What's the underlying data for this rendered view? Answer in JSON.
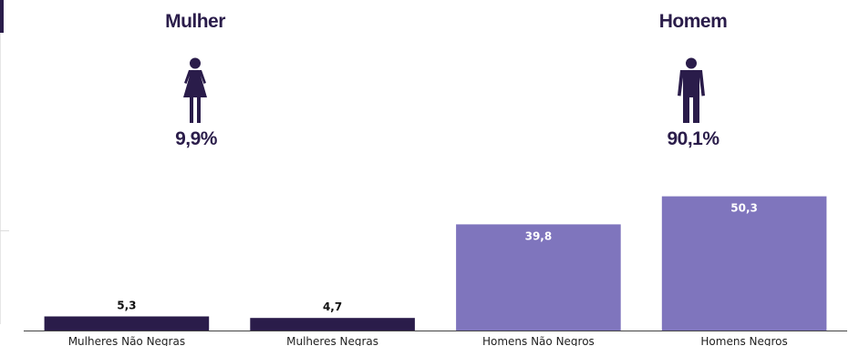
{
  "summary": {
    "female": {
      "title": "Mulher",
      "percent": "9,9%",
      "icon": "female-person-icon"
    },
    "male": {
      "title": "Homem",
      "percent": "90,1%",
      "icon": "male-person-icon"
    }
  },
  "colors": {
    "dark": "#2a1c4a",
    "light": "#7f75bd"
  },
  "chart_data": {
    "type": "bar",
    "title": "",
    "xlabel": "",
    "ylabel": "",
    "categories": [
      "Mulheres Não Negras",
      "Mulheres Negras",
      "Homens Não Negros",
      "Homens Negros"
    ],
    "values": [
      5.3,
      4.7,
      39.8,
      50.3
    ],
    "value_labels": [
      "5,3",
      "4,7",
      "39,8",
      "50,3"
    ],
    "bar_colors": [
      "#2a1c4a",
      "#2a1c4a",
      "#7f75bd",
      "#7f75bd"
    ],
    "ylim": [
      0,
      57
    ],
    "grid": false,
    "legend": "none"
  }
}
